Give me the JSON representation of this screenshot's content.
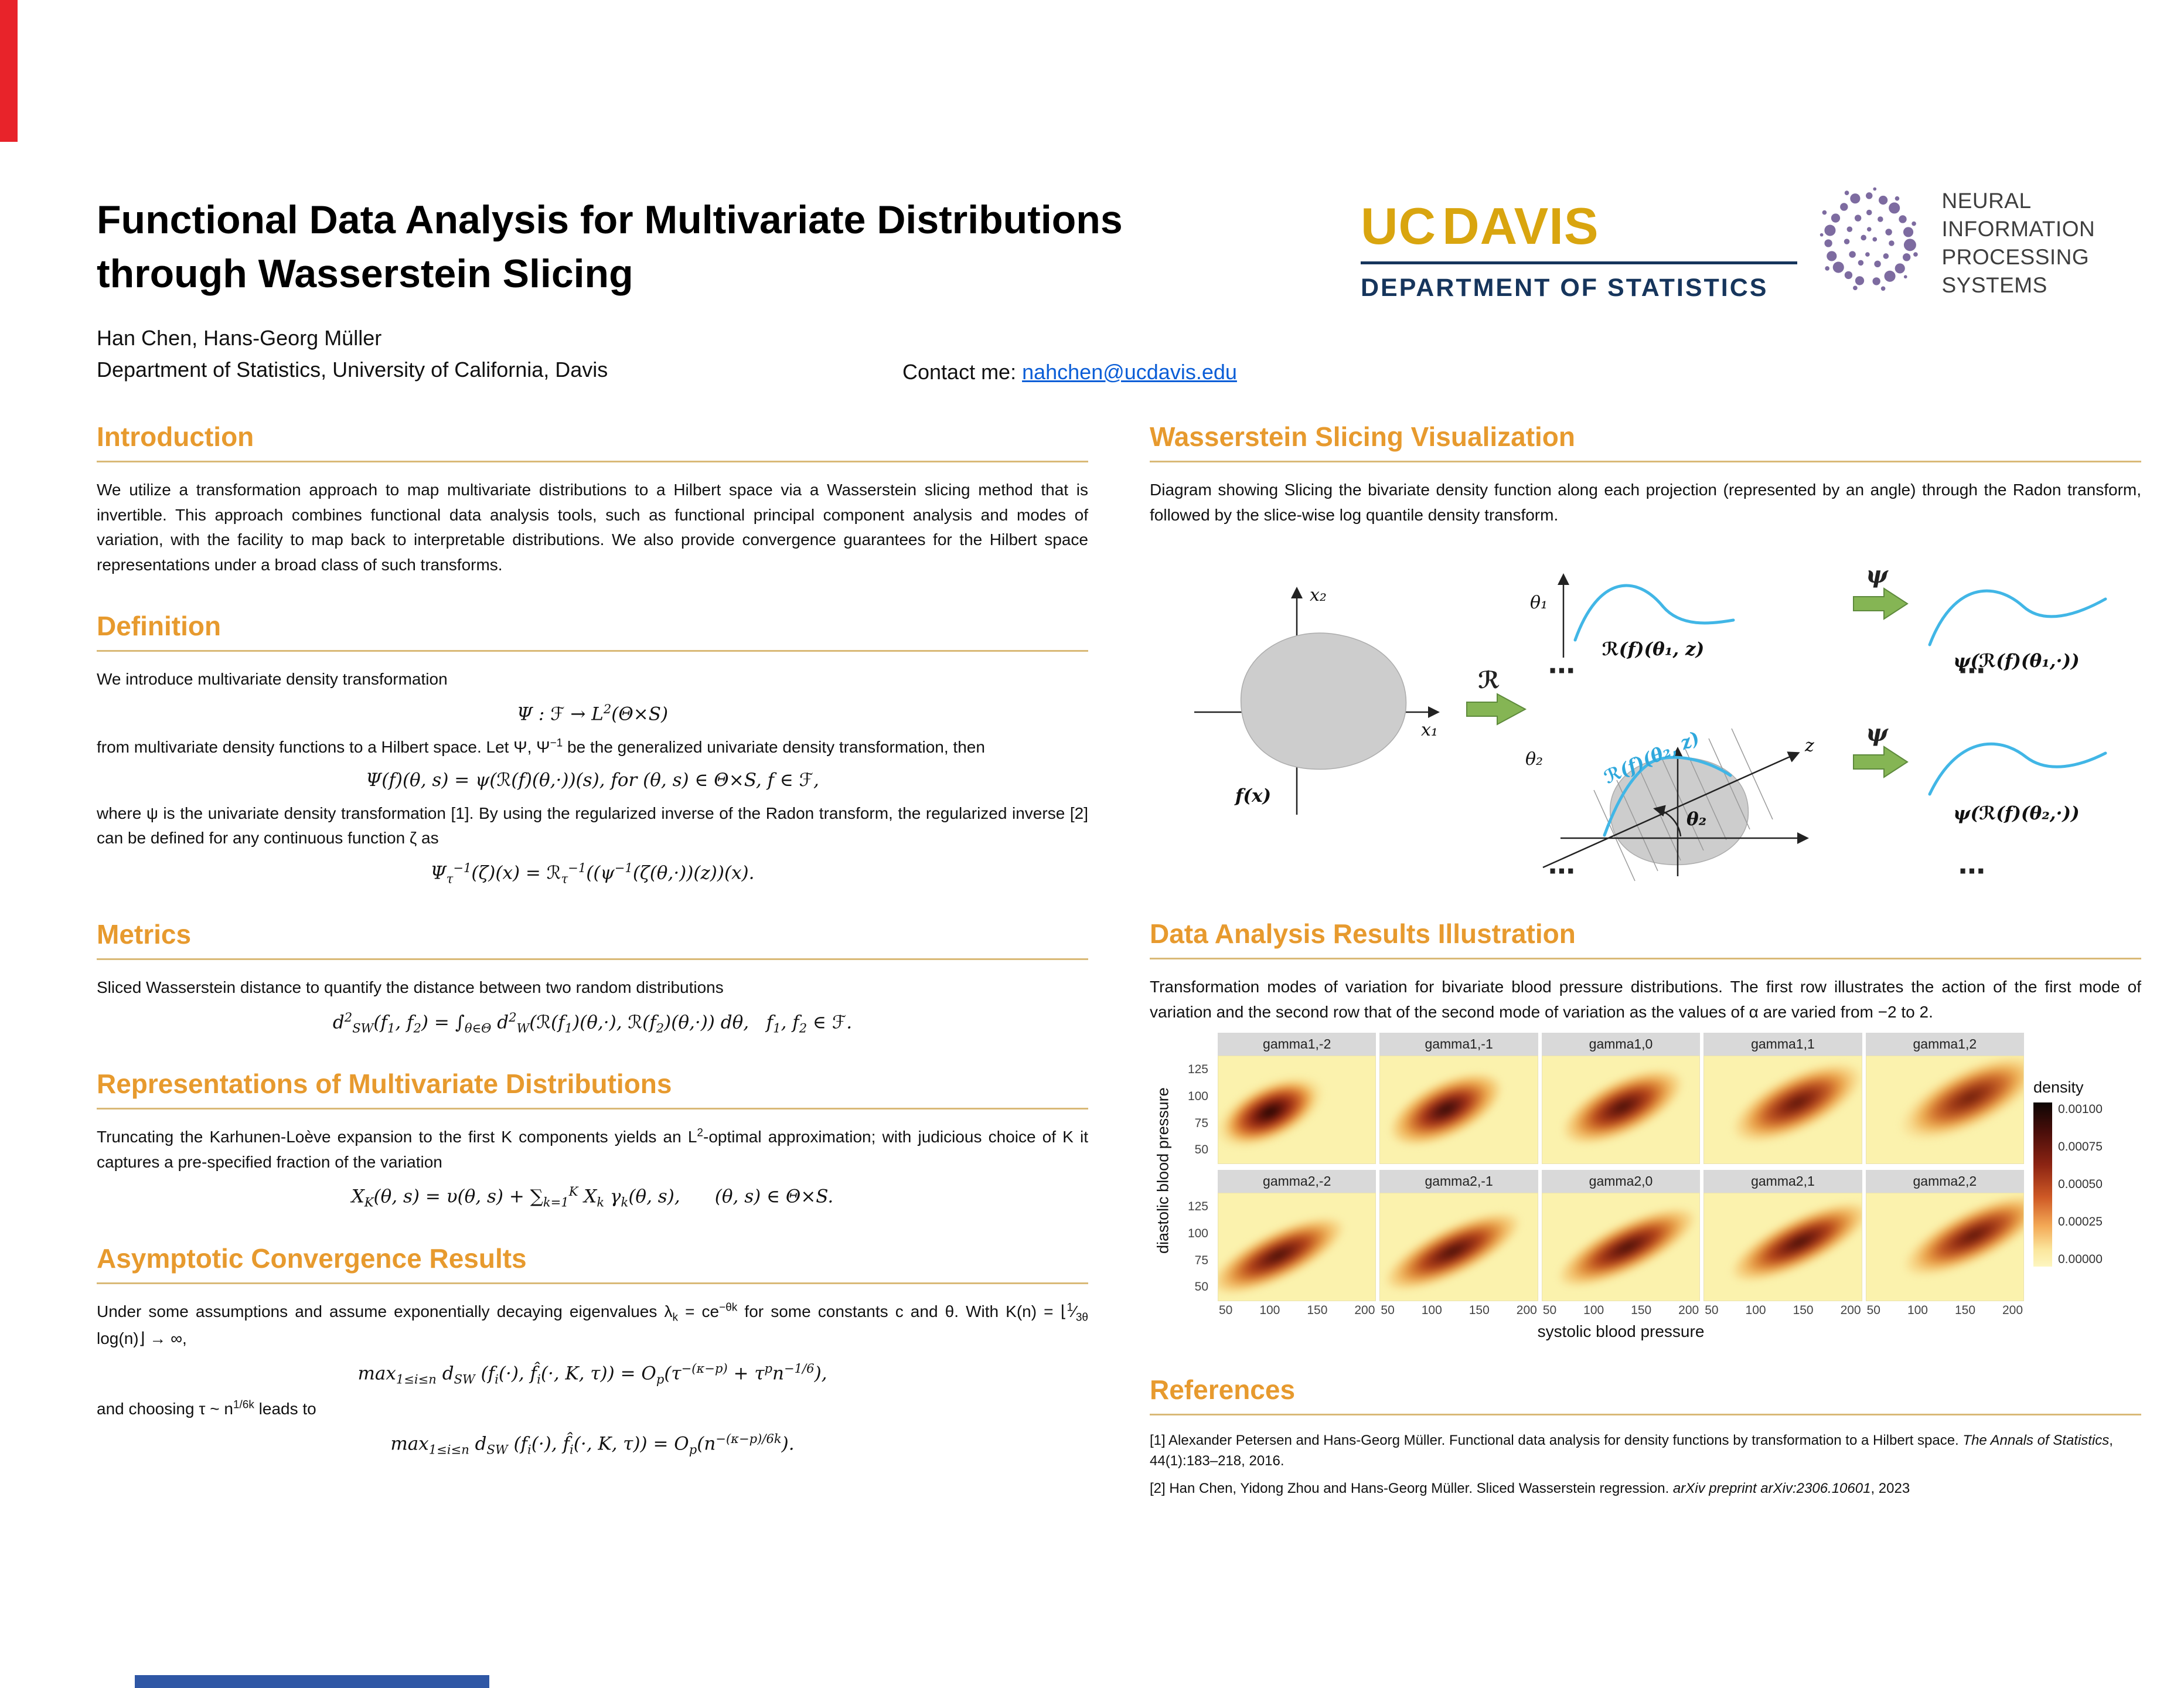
{
  "colors": {
    "heading_orange": "#E79A2E",
    "rule_tan": "#D9B977",
    "ucdavis_gold": "#D9A50F",
    "ucdavis_navy": "#16355C",
    "neurips_purple": "#7D6BA0",
    "curve_blue": "#41B6E6",
    "arrow_green": "#85B554",
    "accent_red": "#E8232A",
    "accent_blue": "#2F57A5",
    "link_blue": "#0B5ED7"
  },
  "header": {
    "title_line1": "Functional Data Analysis for Multivariate Distributions",
    "title_line2": "through Wasserstein Slicing",
    "authors": "Han Chen, Hans-Georg Müller",
    "affiliation": "Department of Statistics, University of California, Davis",
    "contact_label": "Contact me: ",
    "contact_email": "nahchen@ucdavis.edu",
    "ucdavis": {
      "uc": "UC",
      "davis": "DAVIS",
      "dept": "DEPARTMENT OF STATISTICS"
    },
    "neurips": {
      "line1": "NEURAL INFORMATION",
      "line2": "PROCESSING SYSTEMS"
    }
  },
  "left_column": {
    "introduction": {
      "title": "Introduction",
      "body": "We utilize a transformation approach to map multivariate distributions to a Hilbert space via a Wasserstein slicing method that is invertible. This approach combines functional data analysis tools, such as functional principal component analysis and modes of variation, with the facility to map back to interpretable distributions. We also provide convergence guarantees for the Hilbert space representations under a broad class of such transforms."
    },
    "definition": {
      "title": "Definition",
      "p1": "We introduce multivariate density transformation",
      "f1": "Ψ : ℱ → L<sup>2</sup>(Θ×S)",
      "p2": "from multivariate density functions to a Hilbert space. Let Ψ, Ψ<sup>−1</sup> be the generalized univariate density transformation, then",
      "f2": "Ψ(f)(θ, s) = ψ(ℛ(f)(θ,·))(s),  for (θ, s) ∈ Θ×S, f ∈ ℱ,",
      "p3": "where ψ is the univariate density transformation [1]. By using the regularized inverse of the Radon transform, the regularized inverse [2] can be defined for any continuous function ζ as",
      "f3": "Ψ<sub>τ</sub><sup>−1</sup>(ζ)(x) = ℛ<sub>τ</sub><sup>−1</sup>((ψ<sup>−1</sup>(ζ(θ,·))(z))(x)."
    },
    "metrics": {
      "title": "Metrics",
      "p1": "Sliced Wasserstein distance to quantify the distance between two random distributions",
      "f1": "d<sup>2</sup><sub>SW</sub>(f<sub>1</sub>, f<sub>2</sub>) = ∫<sub>θ∈Θ</sub> d<sup>2</sup><sub>W</sub>(ℛ(f<sub>1</sub>)(θ,·), ℛ(f<sub>2</sub>)(θ,·)) dθ, &nbsp; f<sub>1</sub>, f<sub>2</sub> ∈ ℱ."
    },
    "representations": {
      "title": "Representations of Multivariate Distributions",
      "p1": "Truncating the Karhunen-Loève expansion to the first K components yields an L<sup>2</sup>-optimal approximation; with judicious choice of K it captures a pre-specified fraction of the variation",
      "f1": "X<sub>K</sub>(θ, s) = υ(θ, s) + ∑<sub>k=1</sub><sup>K</sup> X<sub>k</sub> γ<sub>k</sub>(θ, s), &nbsp;&nbsp;&nbsp;&nbsp; (θ, s) ∈ Θ×S."
    },
    "asymptotic": {
      "title": "Asymptotic Convergence Results",
      "p1": "Under some assumptions and assume exponentially decaying eigenvalues λ<sub>k</sub> = ce<sup>−θk</sup> for some constants c and θ. With K(n) = ⌊<sup>1</sup>⁄<sub>3θ</sub> log(n)⌋ → ∞,",
      "f1": "max<sub>1≤i≤n</sub> d<sub>SW</sub> (f<sub>i</sub>(·), f̂<sub>i</sub>(·, K, τ)) = O<sub>p</sub>(τ<sup>−(κ−p)</sup> + τ<sup>p</sup>n<sup>−1/6</sup>),",
      "p2": "and choosing τ ~ n<sup>1/6k</sup> leads to",
      "f2": "max<sub>1≤i≤n</sub> d<sub>SW</sub> (f<sub>i</sub>(·), f̂<sub>i</sub>(·, K, τ)) = O<sub>p</sub>(n<sup>−(κ−p)/6k</sup>)."
    }
  },
  "right_column": {
    "visualization": {
      "title": "Wasserstein Slicing Visualization",
      "caption": "Diagram showing Slicing the bivariate density function along each projection (represented by an angle) through the Radon transform, followed by the slice-wise log quantile density transform.",
      "labels": {
        "x1": "x₁",
        "x2": "x₂",
        "fx": "f(x)",
        "radon": "ℛ",
        "theta1": "θ₁",
        "theta2": "θ₂",
        "theta2_inner": "θ₂",
        "z": "z",
        "rf1": "ℛ(f)(θ₁, z)",
        "rf2": "ℛ(f)(θ₂, z)",
        "psi": "ψ",
        "out1": "ψ(ℛ(f)(θ₁,·))",
        "out2": "ψ(ℛ(f)(θ₂,·))",
        "dots": "⋯"
      }
    },
    "results": {
      "title": "Data Analysis Results Illustration",
      "caption": "Transformation modes of variation for bivariate blood pressure distributions. The first row illustrates the action of the first mode of variation and the second row that of the second mode of variation as the values of α are varied from −2 to 2.",
      "chart_data": {
        "type": "heatmap",
        "panels_row1": [
          "gamma1,-2",
          "gamma1,-1",
          "gamma1,0",
          "gamma1,1",
          "gamma1,2"
        ],
        "panels_row2": [
          "gamma2,-2",
          "gamma2,-1",
          "gamma2,0",
          "gamma2,1",
          "gamma2,2"
        ],
        "xlabel": "systolic blood pressure",
        "ylabel": "diastolic blood pressure",
        "x_ticks": [
          "50",
          "100",
          "150",
          "200"
        ],
        "y_ticks": [
          "125",
          "100",
          "75",
          "50"
        ],
        "x_range": [
          40,
          210
        ],
        "y_range": [
          40,
          135
        ],
        "legend_title": "density",
        "legend_labels": [
          "0.00100",
          "0.00075",
          "0.00050",
          "0.00025",
          "0.00000"
        ],
        "description": "Each panel shows a bivariate density heatmap of diastolic vs systolic blood pressure; density mass is an elongated diagonal ridge centered near systolic 100-130 and diastolic 65-90, darkest (highest density) for gamma1,-2 and becoming broader and lighter as alpha increases from -2 to 2."
      }
    },
    "references": {
      "title": "References",
      "items": [
        "[1] Alexander Petersen and Hans-Georg Müller. Functional data analysis for density functions by transformation to a Hilbert space. <i>The Annals of Statistics</i>, 44(1):183–218, 2016.",
        "[2] Han Chen, Yidong Zhou and Hans-Georg Müller. Sliced Wasserstein regression. <i>arXiv preprint arXiv:2306.10601</i>, 2023"
      ]
    }
  }
}
